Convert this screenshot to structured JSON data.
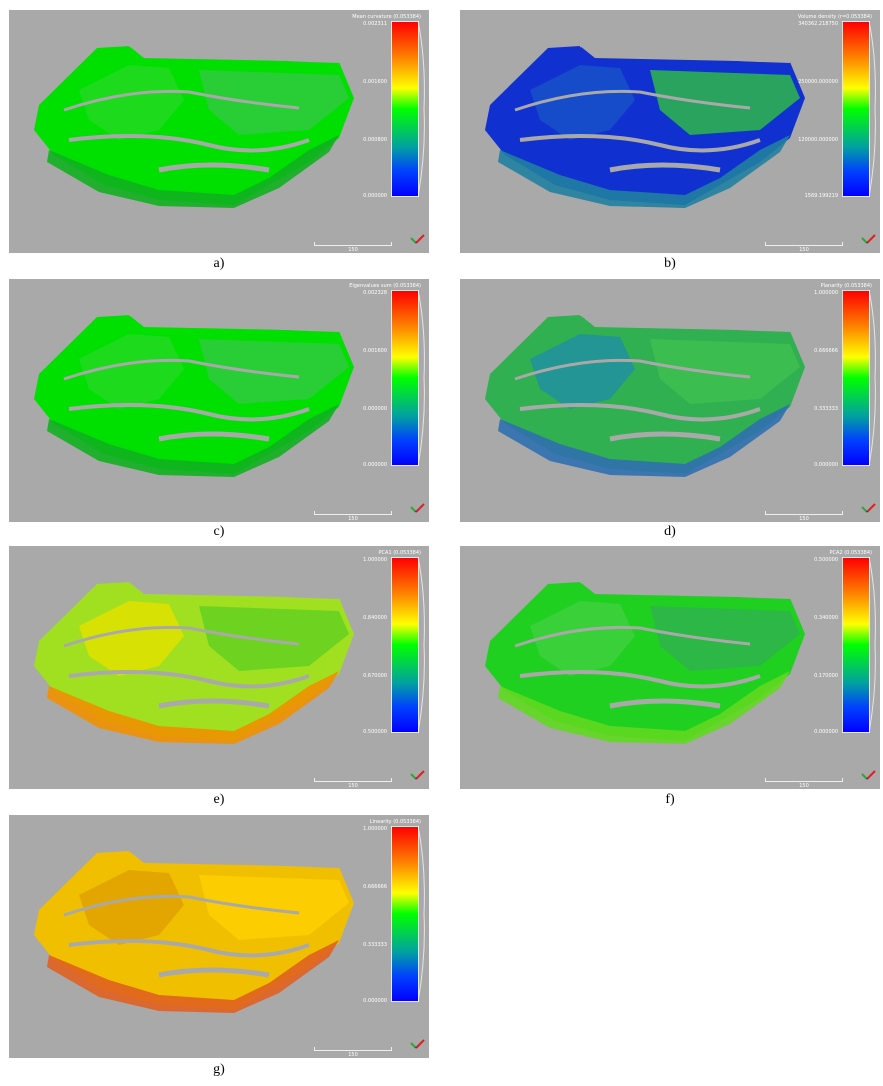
{
  "panels": [
    {
      "id": "a",
      "caption": "a)",
      "title": "Mean curvature (0.053384)",
      "ticks": [
        "0.002311",
        "0.001600",
        "0.000800",
        "0.000000"
      ],
      "scale_label": "150",
      "colors": [
        "#00e000",
        "#22d822",
        "#33c844",
        "#11b020"
      ]
    },
    {
      "id": "b",
      "caption": "b)",
      "title": "Volume density (r=0.053384)",
      "ticks": [
        "340362.218750",
        "250000.000000",
        "120000.000000",
        "1569.199219"
      ],
      "scale_label": "150",
      "colors": [
        "#1030d0",
        "#1850c8",
        "#30c040",
        "#2080a0"
      ]
    },
    {
      "id": "c",
      "caption": "c)",
      "title": "Eigenvalues sum (0.053384)",
      "ticks": [
        "0.002328",
        "0.001600",
        "0.000000",
        "0.000000"
      ],
      "scale_label": "150",
      "colors": [
        "#00e000",
        "#22d822",
        "#33c844",
        "#11b020"
      ]
    },
    {
      "id": "d",
      "caption": "d)",
      "title": "Planarity (0.053384)",
      "ticks": [
        "1.000000",
        "0.666666",
        "0.333333",
        "0.000000"
      ],
      "scale_label": "150",
      "colors": [
        "#30b050",
        "#2090a0",
        "#40c050",
        "#3070b0"
      ]
    },
    {
      "id": "e",
      "caption": "e)",
      "title": "PCA1 (0.053384)",
      "ticks": [
        "1.000000",
        "0.840000",
        "0.670000",
        "0.500000"
      ],
      "scale_label": "150",
      "colors": [
        "#a0e020",
        "#e0e000",
        "#60d020",
        "#f09000"
      ]
    },
    {
      "id": "f",
      "caption": "f)",
      "title": "PCA2 (0.053384)",
      "ticks": [
        "0.500000",
        "0.340000",
        "0.170000",
        "0.000000"
      ],
      "scale_label": "150",
      "colors": [
        "#20d020",
        "#40d040",
        "#30b050",
        "#60d820"
      ]
    },
    {
      "id": "g",
      "caption": "g)",
      "title": "Linearity (0.053384)",
      "ticks": [
        "1.000000",
        "0.666666",
        "0.333333",
        "0.000000"
      ],
      "scale_label": "150",
      "colors": [
        "#f0c000",
        "#e0a000",
        "#ffd000",
        "#e06020"
      ]
    }
  ]
}
